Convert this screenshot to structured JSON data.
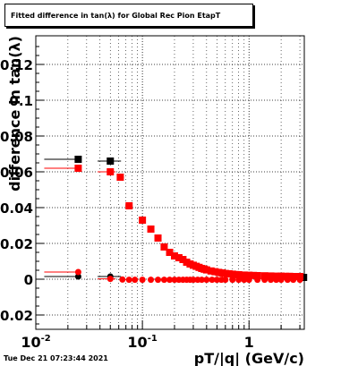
{
  "chart_data": {
    "type": "scatter",
    "title": "Fitted difference in tan(λ) for Global Rec Pion EtapT",
    "xlabel": "pT/|q| (GeV/c)",
    "ylabel": "difference in tan(λ)",
    "x_scale": "log",
    "xlim": [
      0.01,
      3.3
    ],
    "ylim": [
      -0.028,
      0.136
    ],
    "grid": true,
    "x_ticks": [
      {
        "value": 0.01,
        "base": "10",
        "exp": "-2"
      },
      {
        "value": 0.1,
        "base": "10",
        "exp": "-1"
      },
      {
        "value": 1,
        "base": "1",
        "exp": ""
      }
    ],
    "y_ticks": [
      {
        "value": -0.02,
        "label": "-0.02"
      },
      {
        "value": 0,
        "label": "0"
      },
      {
        "value": 0.02,
        "label": "0.02"
      },
      {
        "value": 0.04,
        "label": "0.04"
      },
      {
        "value": 0.06,
        "label": "0.06"
      },
      {
        "value": 0.08,
        "label": "0.08"
      },
      {
        "value": 0.1,
        "label": "0.1"
      },
      {
        "value": 0.12,
        "label": "0.12"
      }
    ],
    "series": [
      {
        "color": "#000000",
        "marker": "square",
        "x": [
          0.025,
          0.05,
          3.25
        ],
        "y": [
          0.067,
          0.066,
          0.001
        ],
        "xerr_lo": [
          0.013,
          0.012,
          0.0
        ],
        "xerr_hi": [
          0.0,
          0.013,
          0.0
        ]
      },
      {
        "color": "#ff0000",
        "marker": "square",
        "x": [
          0.025,
          0.05,
          0.062,
          0.075,
          0.1,
          0.12,
          0.14,
          0.16,
          0.18,
          0.2,
          0.22,
          0.24,
          0.26,
          0.28,
          0.3,
          0.32,
          0.34,
          0.36,
          0.38,
          0.4,
          0.44,
          0.48,
          0.52,
          0.56,
          0.6,
          0.65,
          0.7,
          0.75,
          0.8,
          0.9,
          1.0,
          1.1,
          1.2,
          1.4,
          1.6,
          1.8,
          2.0,
          2.2,
          2.4,
          2.7,
          3.0
        ],
        "y": [
          0.062,
          0.06,
          0.057,
          0.041,
          0.033,
          0.028,
          0.023,
          0.018,
          0.015,
          0.013,
          0.012,
          0.011,
          0.0095,
          0.0085,
          0.0078,
          0.0072,
          0.0066,
          0.006,
          0.0056,
          0.0052,
          0.0046,
          0.0042,
          0.0038,
          0.0035,
          0.0032,
          0.003,
          0.0028,
          0.0026,
          0.0025,
          0.0023,
          0.0022,
          0.0021,
          0.002,
          0.0019,
          0.0018,
          0.0017,
          0.0017,
          0.0016,
          0.0016,
          0.0015,
          0.0015
        ],
        "xerr_lo": [
          0.013,
          0.012,
          0.004,
          0.006
        ],
        "xerr_hi": [
          0.0,
          0.006,
          0.005,
          0.006
        ]
      },
      {
        "color": "#000000",
        "marker": "circle",
        "x": [
          0.025,
          0.05
        ],
        "y": [
          0.0015,
          0.0015
        ],
        "xerr_lo": [
          0.013,
          0.012
        ],
        "xerr_hi": [
          0.0,
          0.013
        ]
      },
      {
        "color": "#ff0000",
        "marker": "circle",
        "x": [
          0.025,
          0.05,
          0.065,
          0.075,
          0.085,
          0.1,
          0.12,
          0.14,
          0.16,
          0.18,
          0.2,
          0.22,
          0.24,
          0.26,
          0.28,
          0.3,
          0.33,
          0.36,
          0.4,
          0.45,
          0.5,
          0.55,
          0.6,
          0.7,
          0.8,
          0.9,
          1.0,
          1.2,
          1.4,
          1.6,
          1.8,
          2.0,
          2.3,
          2.6,
          3.0
        ],
        "y": [
          0.004,
          0.0002,
          -0.0002,
          -0.0003,
          -0.0003,
          -0.0003,
          -0.0003,
          -0.0003,
          -0.0003,
          -0.0003,
          -0.0003,
          -0.0003,
          -0.0003,
          -0.0003,
          -0.0003,
          -0.0003,
          -0.0003,
          -0.0003,
          -0.0003,
          -0.0003,
          -0.0003,
          -0.0003,
          -0.0003,
          -0.0003,
          -0.0003,
          -0.0003,
          -0.0003,
          -0.0003,
          -0.0003,
          -0.0003,
          -0.0003,
          -0.0003,
          -0.0003,
          -0.0003,
          -0.0003
        ],
        "xerr_lo": [
          0.013,
          0.012
        ],
        "xerr_hi": [
          0.0,
          0.006
        ]
      }
    ]
  },
  "timestamp": "Tue Dec 21 07:23:44 2021"
}
